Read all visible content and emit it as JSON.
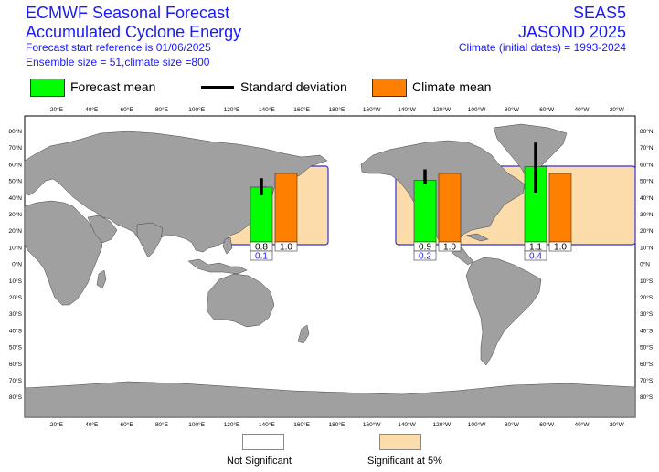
{
  "header": {
    "left_title1": "ECMWF Seasonal Forecast",
    "left_title2": "Accumulated Cyclone Energy",
    "left_line3": "Forecast start reference is 01/06/2025",
    "left_line4": "Ensemble size = 51,climate size =800",
    "right_title1": "SEAS5",
    "right_title2": "JASOND 2025",
    "right_line3": "Climate (initial dates) = 1993-2024"
  },
  "legend": {
    "forecast_mean": "Forecast mean",
    "standard_deviation": "Standard deviation",
    "climate_mean": "Climate mean"
  },
  "bottom_legend": {
    "not_significant": "Not Significant",
    "significant": "Significant at 5%"
  },
  "colors": {
    "forecast": "#00ff00",
    "climate": "#ff7f00",
    "significant": "#fddcab",
    "land": "#a0a0a0",
    "box_border": "#3333cc",
    "header_text": "#1a1aff"
  },
  "chart_data": {
    "type": "bar",
    "x_ticks": [
      "20°E",
      "40°E",
      "60°E",
      "80°E",
      "100°E",
      "120°E",
      "140°E",
      "160°E",
      "180°E",
      "160°W",
      "140°W",
      "120°W",
      "100°W",
      "80°W",
      "60°W",
      "40°W",
      "20°W"
    ],
    "y_ticks": [
      "80°N",
      "70°N",
      "60°N",
      "50°N",
      "40°N",
      "30°N",
      "20°N",
      "10°N",
      "0°N",
      "10°S",
      "20°S",
      "30°S",
      "40°S",
      "50°S",
      "60°S",
      "70°S",
      "80°S"
    ],
    "regions": [
      {
        "forecast": 0.8,
        "climate": 1.0,
        "sd_low": 0.68,
        "sd_high": 0.93,
        "significance": "0.1"
      },
      {
        "forecast": 0.9,
        "climate": 1.0,
        "sd_low": 0.84,
        "sd_high": 1.06,
        "significance": "0.2"
      },
      {
        "forecast": 1.1,
        "climate": 1.0,
        "sd_low": 0.72,
        "sd_high": 1.45,
        "significance": "0.4"
      }
    ]
  }
}
